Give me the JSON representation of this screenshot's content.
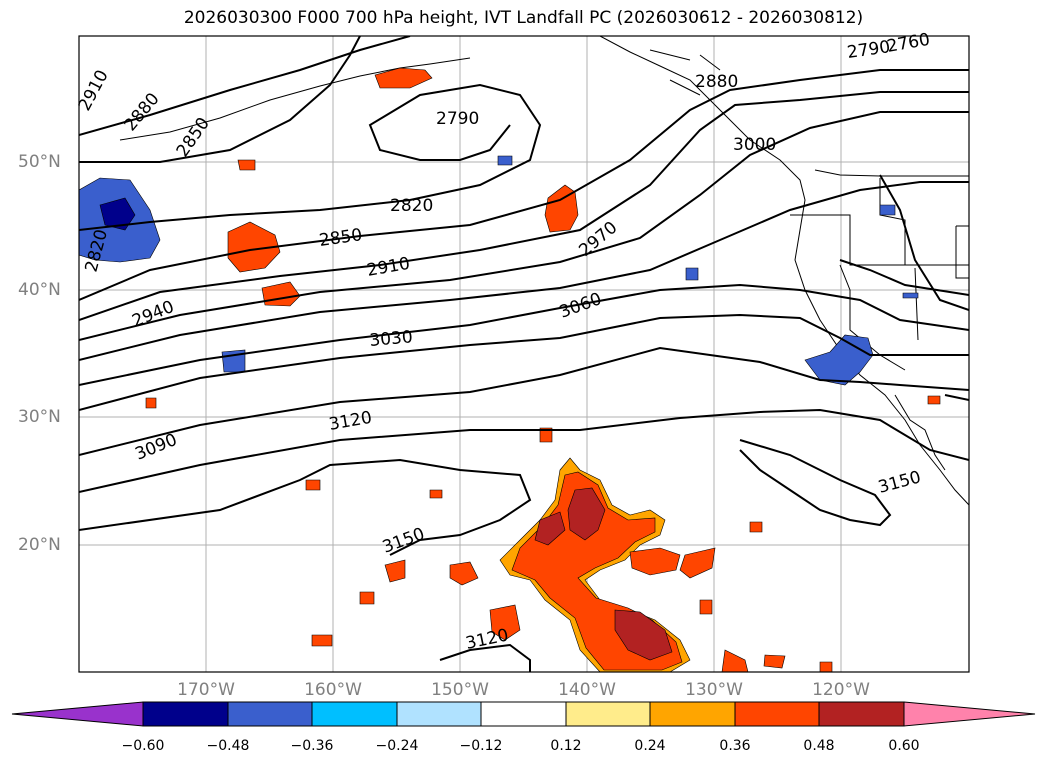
{
  "title": "2026030300 F000 700 hPa height, IVT Landfall PC (2026030612 - 2026030812)",
  "lat_labels": [
    "50°N",
    "40°N",
    "30°N",
    "20°N"
  ],
  "lon_labels": [
    "170°W",
    "160°W",
    "150°W",
    "140°W",
    "130°W",
    "120°W"
  ],
  "contour_labels": [
    "2910",
    "2880",
    "2850",
    "2820",
    "2790",
    "2820",
    "2850",
    "2910",
    "2940",
    "2970",
    "3000",
    "3030",
    "3060",
    "3090",
    "3120",
    "3150",
    "3150",
    "3120",
    "2880",
    "2790",
    "2760"
  ],
  "colorbar": {
    "ticks": [
      "−0.60",
      "−0.48",
      "−0.36",
      "−0.24",
      "−0.12",
      "0.12",
      "0.24",
      "0.36",
      "0.48",
      "0.60"
    ],
    "colors": [
      "#9932cc",
      "#00008b",
      "#3a5fcd",
      "#00bfff",
      "#b0e2ff",
      "#ffffff",
      "#ffec8b",
      "#ffa500",
      "#ff4500",
      "#b22222",
      "#ff82ab"
    ]
  },
  "colors": {
    "pos_low": "#ffec8b",
    "pos_mid": "#ffa500",
    "pos_high": "#ff4500",
    "pos_max": "#b22222",
    "neg_low": "#00bfff",
    "neg_mid": "#3a5fcd",
    "neg_high": "#00008b"
  }
}
